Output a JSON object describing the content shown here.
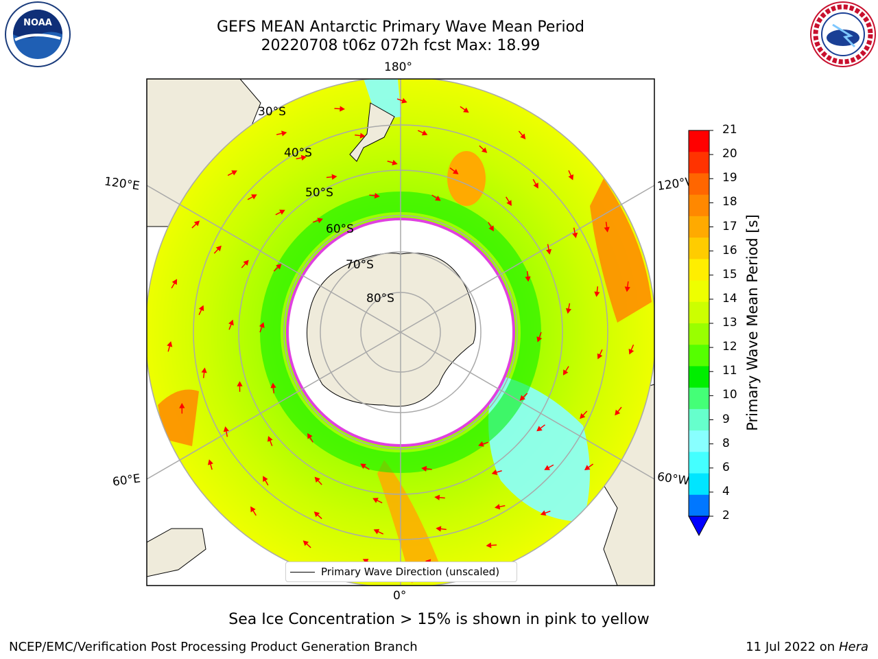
{
  "header": {
    "title_line1": "GEFS MEAN Antarctic Primary Wave Mean Period",
    "title_line2": "20220708 t06z 072h fcst   Max: 18.99"
  },
  "logos": {
    "left": "noaa-logo",
    "right": "national-weather-service-logo"
  },
  "map": {
    "longitude_labels": {
      "top": "180°",
      "bottom": "0°",
      "left_upper": "120°E",
      "left_lower": "60°E",
      "right_upper": "120°W",
      "right_lower": "60°W"
    },
    "latitude_labels": [
      "30°S",
      "40°S",
      "50°S",
      "60°S",
      "70°S",
      "80°S"
    ],
    "legend_label": "Primary Wave Direction (unscaled)",
    "land_color": "#efebdb",
    "ice_edge_color": "#e040e0"
  },
  "colorbar": {
    "label": "Primary Wave Mean Period [s]",
    "ticks": [
      "21",
      "20",
      "19",
      "18",
      "17",
      "16",
      "15",
      "14",
      "13",
      "12",
      "11",
      "10",
      "9",
      "8",
      "6",
      "4",
      "2"
    ],
    "colors": [
      "#ff0000",
      "#ff3300",
      "#ff6600",
      "#ff8800",
      "#ffaa00",
      "#ffcc00",
      "#ffee00",
      "#eeff00",
      "#ccff00",
      "#99ff00",
      "#55ff00",
      "#00ee00",
      "#44ff77",
      "#66ffcc",
      "#88ffff",
      "#44ffff",
      "#00e5ff",
      "#0077ff"
    ],
    "extend_color": "#0000ff"
  },
  "caption": "Sea Ice Concentration > 15% is shown in pink to yellow",
  "footer": {
    "left": "NCEP/EMC/Verification Post Processing Product Generation Branch",
    "date": "11 Jul 2022 on ",
    "machine": "Hera"
  }
}
